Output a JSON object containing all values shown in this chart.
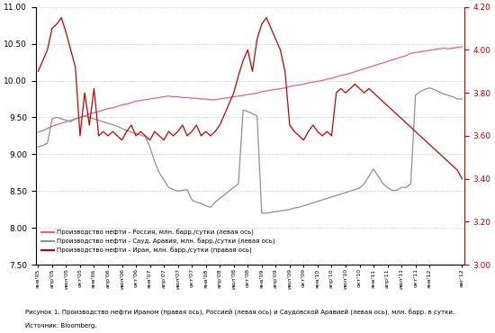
{
  "caption_line1": "Рисунок 1. Производство нефти Ираном (правая ось), Россией (левая ось) и Саудовской Аравией (левая ось), млн. барр. в сутки.",
  "caption_line2": "Источник: Bloomberg.",
  "legend_russia": "Производство нефти - Россия, млн. барр./сутки (левая ось)",
  "legend_saudi": "Производство нефти - Сауд. Аравия, млн. барр./сутки (левая ось)",
  "legend_iran": "Производство нефти - Иран, млн. барр./сутки (правая ось)",
  "color_russia": "#e0609a",
  "color_saudi": "#909090",
  "color_iran": "#cc0000",
  "ylim_left": [
    7.5,
    11.0
  ],
  "ylim_right": [
    3.0,
    4.2
  ],
  "yticks_left": [
    7.5,
    8.0,
    8.5,
    9.0,
    9.5,
    10.0,
    10.5,
    11.0
  ],
  "yticks_right": [
    3.0,
    3.2,
    3.4,
    3.6,
    3.8,
    4.0,
    4.2
  ],
  "background_color": "#ffffff",
  "x_labels_sparse": [
    "янв'05",
    "апр'05",
    "июл'05",
    "окт'05",
    "янв'06",
    "апр'06",
    "июл'06",
    "окт'06",
    "янв'07",
    "апр'07",
    "июл'07",
    "окт'07",
    "янв'08",
    "апр'08",
    "июл'08",
    "окт'08",
    "янв'09",
    "апр'09",
    "июл'09",
    "окт'09",
    "янв'10",
    "апр'10",
    "июл'10",
    "окт'10",
    "янв'11",
    "апр'11",
    "июл'11",
    "окт'11",
    "янв'12",
    "авг'12"
  ],
  "x_label_indices": [
    0,
    3,
    6,
    9,
    12,
    15,
    18,
    21,
    24,
    27,
    30,
    33,
    36,
    39,
    42,
    45,
    48,
    51,
    54,
    57,
    60,
    63,
    66,
    69,
    72,
    75,
    78,
    81,
    84,
    91
  ],
  "russia": [
    9.3,
    9.32,
    9.35,
    9.38,
    9.4,
    9.42,
    9.44,
    9.46,
    9.48,
    9.5,
    9.52,
    9.55,
    9.56,
    9.58,
    9.6,
    9.62,
    9.63,
    9.65,
    9.67,
    9.68,
    9.7,
    9.72,
    9.73,
    9.74,
    9.75,
    9.76,
    9.77,
    9.78,
    9.79,
    9.78,
    9.78,
    9.77,
    9.77,
    9.76,
    9.76,
    9.75,
    9.75,
    9.74,
    9.74,
    9.75,
    9.76,
    9.77,
    9.78,
    9.79,
    9.8,
    9.81,
    9.82,
    9.83,
    9.85,
    9.86,
    9.87,
    9.88,
    9.89,
    9.9,
    9.92,
    9.93,
    9.94,
    9.95,
    9.97,
    9.98,
    9.99,
    10.0,
    10.02,
    10.03,
    10.05,
    10.07,
    10.08,
    10.1,
    10.12,
    10.14,
    10.16,
    10.18,
    10.2,
    10.22,
    10.24,
    10.26,
    10.28,
    10.3,
    10.32,
    10.34,
    10.37,
    10.38,
    10.39,
    10.4,
    10.41,
    10.42,
    10.43,
    10.44,
    10.43,
    10.44,
    10.45,
    10.46
  ],
  "saudi": [
    9.1,
    9.12,
    9.15,
    9.48,
    9.5,
    9.48,
    9.46,
    9.44,
    9.48,
    9.5,
    9.52,
    9.5,
    9.48,
    9.46,
    9.44,
    9.42,
    9.4,
    9.38,
    9.35,
    9.32,
    9.3,
    9.28,
    9.26,
    9.24,
    9.1,
    8.9,
    8.75,
    8.65,
    8.55,
    8.52,
    8.5,
    8.51,
    8.52,
    8.38,
    8.35,
    8.33,
    8.3,
    8.28,
    8.35,
    8.4,
    8.45,
    8.5,
    8.55,
    8.6,
    9.6,
    9.58,
    9.55,
    9.52,
    8.2,
    8.2,
    8.21,
    8.22,
    8.23,
    8.24,
    8.25,
    8.27,
    8.28,
    8.3,
    8.32,
    8.34,
    8.36,
    8.38,
    8.4,
    8.42,
    8.44,
    8.46,
    8.48,
    8.5,
    8.52,
    8.54,
    8.6,
    8.7,
    8.8,
    8.7,
    8.6,
    8.55,
    8.51,
    8.51,
    8.55,
    8.55,
    8.6,
    9.8,
    9.85,
    9.88,
    9.9,
    9.88,
    9.85,
    9.82,
    9.8,
    9.78,
    9.75,
    9.75
  ],
  "iran": [
    3.9,
    3.95,
    4.0,
    4.1,
    4.12,
    4.15,
    4.08,
    4.0,
    3.92,
    3.6,
    3.8,
    3.65,
    3.82,
    3.6,
    3.62,
    3.6,
    3.62,
    3.6,
    3.58,
    3.62,
    3.65,
    3.6,
    3.62,
    3.6,
    3.58,
    3.62,
    3.6,
    3.58,
    3.62,
    3.6,
    3.62,
    3.65,
    3.6,
    3.62,
    3.65,
    3.6,
    3.62,
    3.6,
    3.62,
    3.65,
    3.7,
    3.75,
    3.8,
    3.88,
    3.95,
    4.0,
    3.9,
    4.05,
    4.12,
    4.15,
    4.1,
    4.05,
    4.0,
    3.9,
    3.65,
    3.62,
    3.6,
    3.58,
    3.62,
    3.65,
    3.62,
    3.6,
    3.62,
    3.6,
    3.8,
    3.82,
    3.8,
    3.82,
    3.84,
    3.82,
    3.8,
    3.82,
    3.8,
    3.78,
    3.76,
    3.74,
    3.72,
    3.7,
    3.68,
    3.66,
    3.64,
    3.62,
    3.6,
    3.58,
    3.56,
    3.54,
    3.52,
    3.5,
    3.48,
    3.46,
    3.44,
    3.4
  ]
}
